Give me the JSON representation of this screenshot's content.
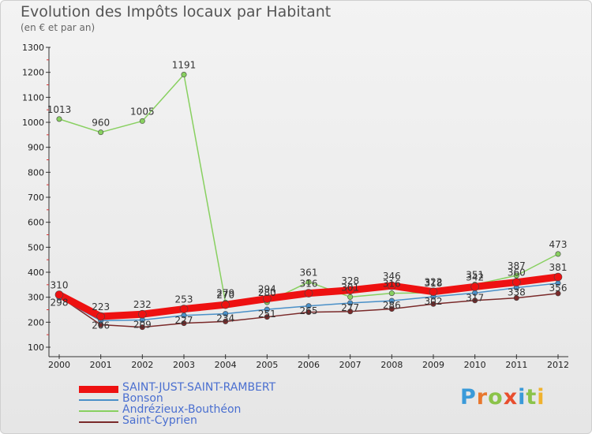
{
  "title": "Evolution des Impôts locaux par Habitant",
  "subtitle": "(en € et par an)",
  "logo": {
    "text": "Proxiti",
    "letters": [
      "P",
      "r",
      "o",
      "x",
      "i",
      "t",
      "i"
    ],
    "colors": [
      "#3a9ad9",
      "#e8772e",
      "#8bc34a",
      "#e84e2e",
      "#3a9ad9",
      "#8bc34a",
      "#f0b22e"
    ]
  },
  "chart_data": {
    "type": "line",
    "title": "Evolution des Impôts locaux par Habitant",
    "subtitle": "(en € et par an)",
    "x": [
      "2000",
      "2001",
      "2002",
      "2003",
      "2004",
      "2005",
      "2006",
      "2007",
      "2008",
      "2009",
      "2010",
      "2011",
      "2012"
    ],
    "ylim": [
      100,
      1300
    ],
    "yticks": [
      100,
      200,
      300,
      400,
      500,
      600,
      700,
      800,
      900,
      1000,
      1100,
      1200,
      1300
    ],
    "grid": false,
    "legend_position": "bottom-left",
    "series": [
      {
        "name": "SAINT-JUST-SAINT-RAMBERT",
        "color": "#ee1111",
        "width": 9,
        "values": [
          310,
          223,
          232,
          253,
          270,
          294,
          316,
          328,
          346,
          322,
          342,
          360,
          381
        ],
        "labels": true
      },
      {
        "name": "Bonson",
        "color": "#4a90c8",
        "width": 1.5,
        "values": [
          298,
          206,
          209,
          227,
          234,
          251,
          265,
          277,
          286,
          302,
          317,
          338,
          356
        ],
        "labels": true
      },
      {
        "name": "Andrézieux-Bouthéon",
        "color": "#88d060",
        "width": 1.5,
        "values": [
          1013,
          960,
          1005,
          1191,
          279,
          280,
          361,
          301,
          316,
          318,
          351,
          387,
          473
        ],
        "labels": true
      },
      {
        "name": "Saint-Cyprien",
        "color": "#7a2a2a",
        "width": 1.5,
        "values": [
          303,
          190,
          180,
          196,
          203,
          221,
          240,
          243,
          253,
          273,
          287,
          297,
          315
        ],
        "labels": false
      }
    ]
  }
}
